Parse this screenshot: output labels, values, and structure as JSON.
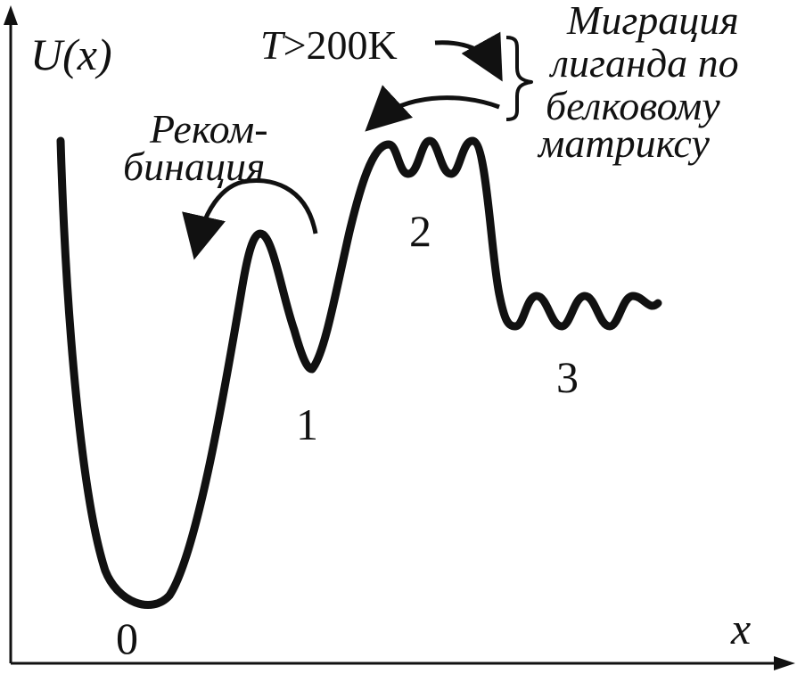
{
  "axes": {
    "y_label_func": "U",
    "y_label_arg": "(x)",
    "x_label": "x"
  },
  "wells": [
    "0",
    "1",
    "2",
    "3"
  ],
  "annotations": {
    "recombination_line1": "Реком-",
    "recombination_line2": "бинация",
    "temperature_var": "T",
    "temperature_rest": ">200K",
    "migration_lines": [
      "Миграция",
      "лиганда по",
      "белковому",
      "матриксу"
    ]
  },
  "colors": {
    "ink": "#111111",
    "background": "#ffffff"
  },
  "icons": [
    "axis-arrow-up-icon",
    "axis-arrow-right-icon",
    "curved-arrow-icon",
    "curly-brace-icon"
  ]
}
